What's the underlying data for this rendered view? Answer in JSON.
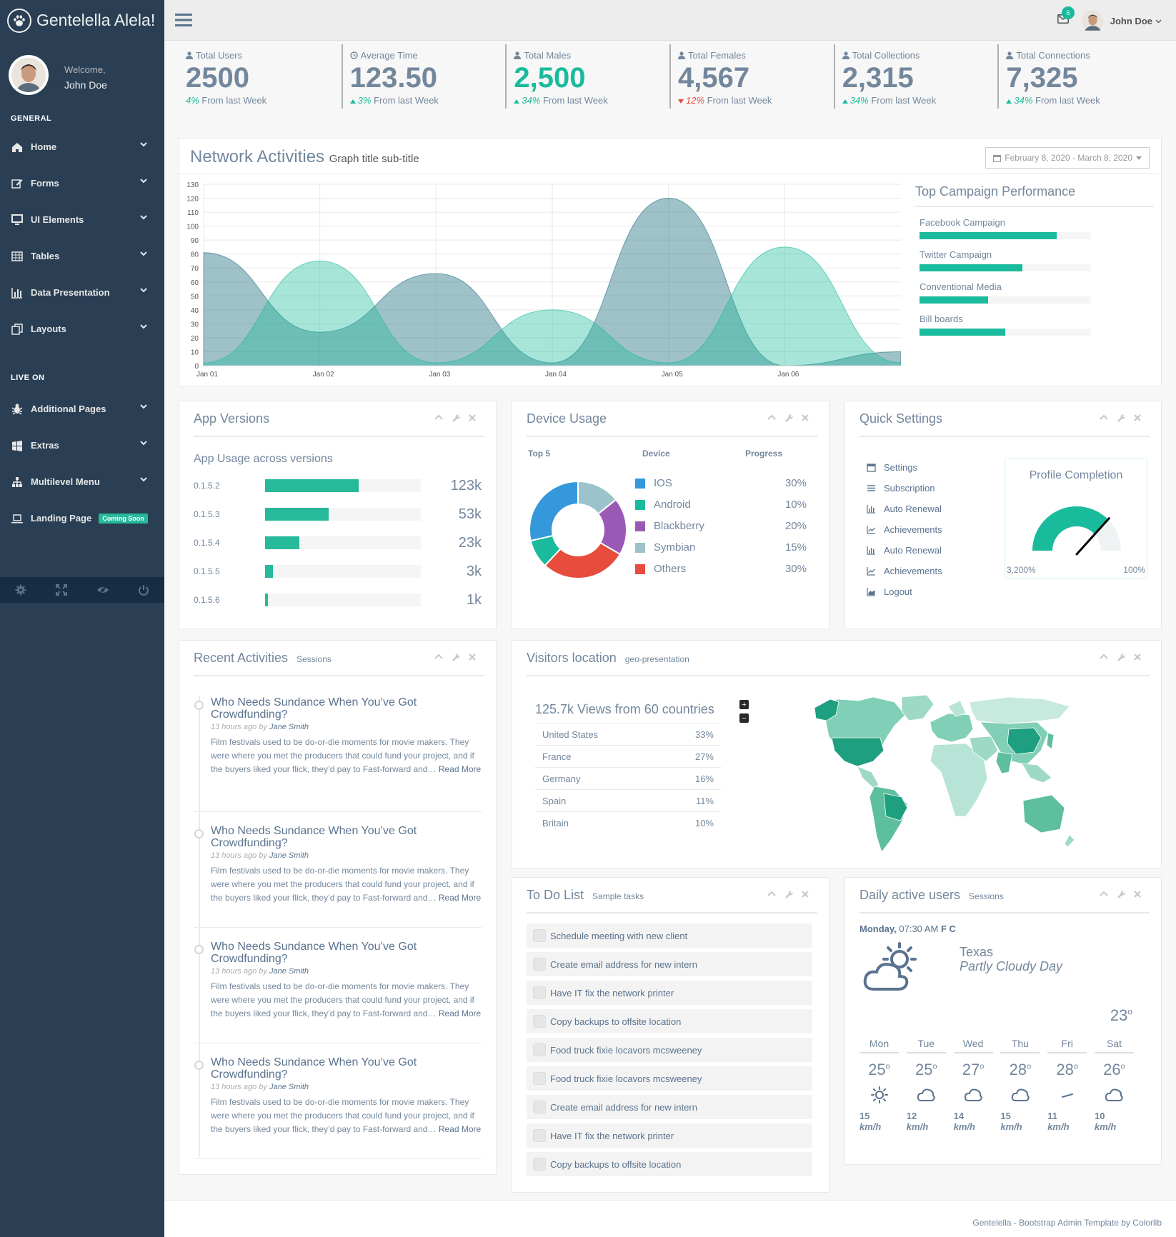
{
  "brand": {
    "title": "Gentelella Alela!"
  },
  "profile": {
    "welcome": "Welcome,",
    "name": "John Doe"
  },
  "sidebar": {
    "general_title": "GENERAL",
    "general_items": [
      {
        "label": "Home",
        "icon": "home-icon"
      },
      {
        "label": "Forms",
        "icon": "edit-icon"
      },
      {
        "label": "UI Elements",
        "icon": "desktop-icon"
      },
      {
        "label": "Tables",
        "icon": "table-icon"
      },
      {
        "label": "Data Presentation",
        "icon": "bar-chart-icon"
      },
      {
        "label": "Layouts",
        "icon": "clone-icon"
      }
    ],
    "live_title": "LIVE ON",
    "live_items": [
      {
        "label": "Additional Pages",
        "icon": "bug-icon"
      },
      {
        "label": "Extras",
        "icon": "windows-icon"
      },
      {
        "label": "Multilevel Menu",
        "icon": "sitemap-icon"
      },
      {
        "label": "Landing Page",
        "icon": "laptop-icon",
        "badge": "Coming Soon"
      }
    ],
    "footer_icons": [
      "settings-icon",
      "fullscreen-icon",
      "lock-icon",
      "logout-icon"
    ]
  },
  "topnav": {
    "user": "John Doe",
    "mail_count": "6"
  },
  "tiles": [
    {
      "label": "Total Users",
      "count": "2500",
      "change": "4%",
      "suffix": " From last Week",
      "dir": "none"
    },
    {
      "label": "Average Time",
      "count": "123.50",
      "change": "3%",
      "suffix": " From last Week",
      "dir": "up"
    },
    {
      "label": "Total Males",
      "count": "2,500",
      "change": "34%",
      "suffix": " From last Week",
      "dir": "up"
    },
    {
      "label": "Total Females",
      "count": "4,567",
      "change": "12%",
      "suffix": " From last Week",
      "dir": "down"
    },
    {
      "label": "Total Collections",
      "count": "2,315",
      "change": "34%",
      "suffix": " From last Week",
      "dir": "up"
    },
    {
      "label": "Total Connections",
      "count": "7,325",
      "change": "34%",
      "suffix": " From last Week",
      "dir": "up"
    }
  ],
  "network": {
    "title": "Network Activities",
    "subtitle": "Graph title sub-title",
    "date_range": "February 8, 2020 - March 8, 2020"
  },
  "chart_data": {
    "type": "area",
    "x": [
      "Jan 01",
      "Jan 02",
      "Jan 03",
      "Jan 04",
      "Jan 05",
      "Jan 06"
    ],
    "yticks": [
      0,
      10,
      20,
      30,
      40,
      50,
      60,
      70,
      80,
      90,
      100,
      110,
      120,
      130
    ],
    "ylim": [
      0,
      130
    ],
    "series": [
      {
        "color": "#2A7686",
        "points": [
          [
            0,
            81
          ],
          [
            1,
            24
          ],
          [
            2,
            66
          ],
          [
            3,
            2
          ],
          [
            4,
            120
          ],
          [
            5,
            0
          ],
          [
            6,
            10
          ]
        ]
      },
      {
        "color": "#1ABB9C",
        "points": [
          [
            0,
            2
          ],
          [
            1,
            75
          ],
          [
            2,
            2
          ],
          [
            3,
            40
          ],
          [
            4,
            2
          ],
          [
            5,
            85
          ],
          [
            6,
            2
          ]
        ]
      }
    ]
  },
  "campaign": {
    "title": "Top Campaign Performance",
    "items": [
      {
        "label": "Facebook Campaign",
        "value": 0.8
      },
      {
        "label": "Twitter Campaign",
        "value": 0.6
      },
      {
        "label": "Conventional Media",
        "value": 0.4
      },
      {
        "label": "Bill boards",
        "value": 0.5
      }
    ]
  },
  "app_versions": {
    "title": "App Versions",
    "subtitle": "App Usage across versions",
    "rows": [
      {
        "version": "0.1.5.2",
        "value": "123k",
        "fill": 0.6
      },
      {
        "version": "0.1.5.3",
        "value": "53k",
        "fill": 0.41
      },
      {
        "version": "0.1.5.4",
        "value": "23k",
        "fill": 0.22
      },
      {
        "version": "0.1.5.5",
        "value": "3k",
        "fill": 0.05
      },
      {
        "version": "0.1.5.6",
        "value": "1k",
        "fill": 0.02
      }
    ]
  },
  "device_usage": {
    "title": "Device Usage",
    "col_top": "Top 5",
    "col_device": "Device",
    "col_progress": "Progress",
    "devices": [
      {
        "name": "IOS",
        "pct": "30%",
        "color": "#3498DB",
        "share": 30
      },
      {
        "name": "Android",
        "pct": "10%",
        "color": "#1ABB9C",
        "share": 10
      },
      {
        "name": "Blackberry",
        "pct": "20%",
        "color": "#9B59B6",
        "share": 20
      },
      {
        "name": "Symbian",
        "pct": "15%",
        "color": "#9CC2CB",
        "share": 15
      },
      {
        "name": "Others",
        "pct": "30%",
        "color": "#E74C3C",
        "share": 30
      }
    ]
  },
  "quick_settings": {
    "title": "Quick Settings",
    "items": [
      {
        "label": "Settings",
        "icon": "calendar-icon"
      },
      {
        "label": "Subscription",
        "icon": "list-icon"
      },
      {
        "label": "Auto Renewal",
        "icon": "bar-chart-icon"
      },
      {
        "label": "Achievements",
        "icon": "line-chart-icon"
      },
      {
        "label": "Auto Renewal",
        "icon": "bar-chart-icon"
      },
      {
        "label": "Achievements",
        "icon": "line-chart-icon"
      },
      {
        "label": "Logout",
        "icon": "area-chart-icon"
      }
    ],
    "profile_completion": {
      "title": "Profile Completion",
      "min": "3,200%",
      "max": "100%",
      "level": 0.75
    }
  },
  "recent": {
    "title": "Recent Activities",
    "subtitle": "Sessions",
    "items": [
      {
        "title": "Who Needs Sundance When You’ve Got Crowdfunding?",
        "time": "13 hours ago",
        "by": "by",
        "author": "Jane Smith",
        "excerpt": "Film festivals used to be do-or-die moments for movie makers. They were where you met the producers that could fund your project, and if the buyers liked your flick, they’d pay to Fast-forward and…",
        "more": "Read More"
      },
      {
        "title": "Who Needs Sundance When You’ve Got Crowdfunding?",
        "time": "13 hours ago",
        "by": "by",
        "author": "Jane Smith",
        "excerpt": "Film festivals used to be do-or-die moments for movie makers. They were where you met the producers that could fund your project, and if the buyers liked your flick, they’d pay to Fast-forward and…",
        "more": "Read More"
      },
      {
        "title": "Who Needs Sundance When You’ve Got Crowdfunding?",
        "time": "13 hours ago",
        "by": "by",
        "author": "Jane Smith",
        "excerpt": "Film festivals used to be do-or-die moments for movie makers. They were where you met the producers that could fund your project, and if the buyers liked your flick, they’d pay to Fast-forward and…",
        "more": "Read More"
      },
      {
        "title": "Who Needs Sundance When You’ve Got Crowdfunding?",
        "time": "13 hours ago",
        "by": "by",
        "author": "Jane Smith",
        "excerpt": "Film festivals used to be do-or-die moments for movie makers. They were where you met the producers that could fund your project, and if the buyers liked your flick, they’d pay to Fast-forward and…",
        "more": "Read More"
      }
    ]
  },
  "visitors": {
    "title": "Visitors location",
    "subtitle": "geo-presentation",
    "views": "125.7k Views from 60 countries",
    "countries": [
      {
        "name": "United States",
        "pct": "33%"
      },
      {
        "name": "France",
        "pct": "27%"
      },
      {
        "name": "Germany",
        "pct": "16%"
      },
      {
        "name": "Spain",
        "pct": "11%"
      },
      {
        "name": "Britain",
        "pct": "10%"
      }
    ],
    "zoom_in": "+",
    "zoom_out": "−"
  },
  "todo": {
    "title": "To Do List",
    "subtitle": "Sample tasks",
    "items": [
      "Schedule meeting with new client",
      "Create email address for new intern",
      "Have IT fix the network printer",
      "Copy backups to offsite location",
      "Food truck fixie locavors mcsweeney",
      "Food truck fixie locavors mcsweeney",
      "Create email address for new intern",
      "Have IT fix the network printer",
      "Copy backups to offsite location"
    ]
  },
  "daily": {
    "title": "Daily active users",
    "subtitle": "Sessions",
    "day": "Monday,",
    "time": " 07:30 AM",
    "units": "F C",
    "location": "Texas",
    "condition": "Partly Cloudy Day",
    "temp": "23",
    "days": [
      {
        "name": "Mon",
        "temp": "25",
        "icon": "sun-icon",
        "speed": "15",
        "unit": "km/h"
      },
      {
        "name": "Tue",
        "temp": "25",
        "icon": "cloud-icon",
        "speed": "12",
        "unit": "km/h"
      },
      {
        "name": "Wed",
        "temp": "27",
        "icon": "cloud-icon",
        "speed": "14",
        "unit": "km/h"
      },
      {
        "name": "Thu",
        "temp": "28",
        "icon": "cloud-icon",
        "speed": "15",
        "unit": "km/h"
      },
      {
        "name": "Fri",
        "temp": "28",
        "icon": "wind-icon",
        "speed": "11",
        "unit": "km/h"
      },
      {
        "name": "Sat",
        "temp": "26",
        "icon": "cloud-icon",
        "speed": "10",
        "unit": "km/h"
      }
    ]
  },
  "footer": {
    "text": "Gentelella - Bootstrap Admin Template by Colorlib"
  }
}
